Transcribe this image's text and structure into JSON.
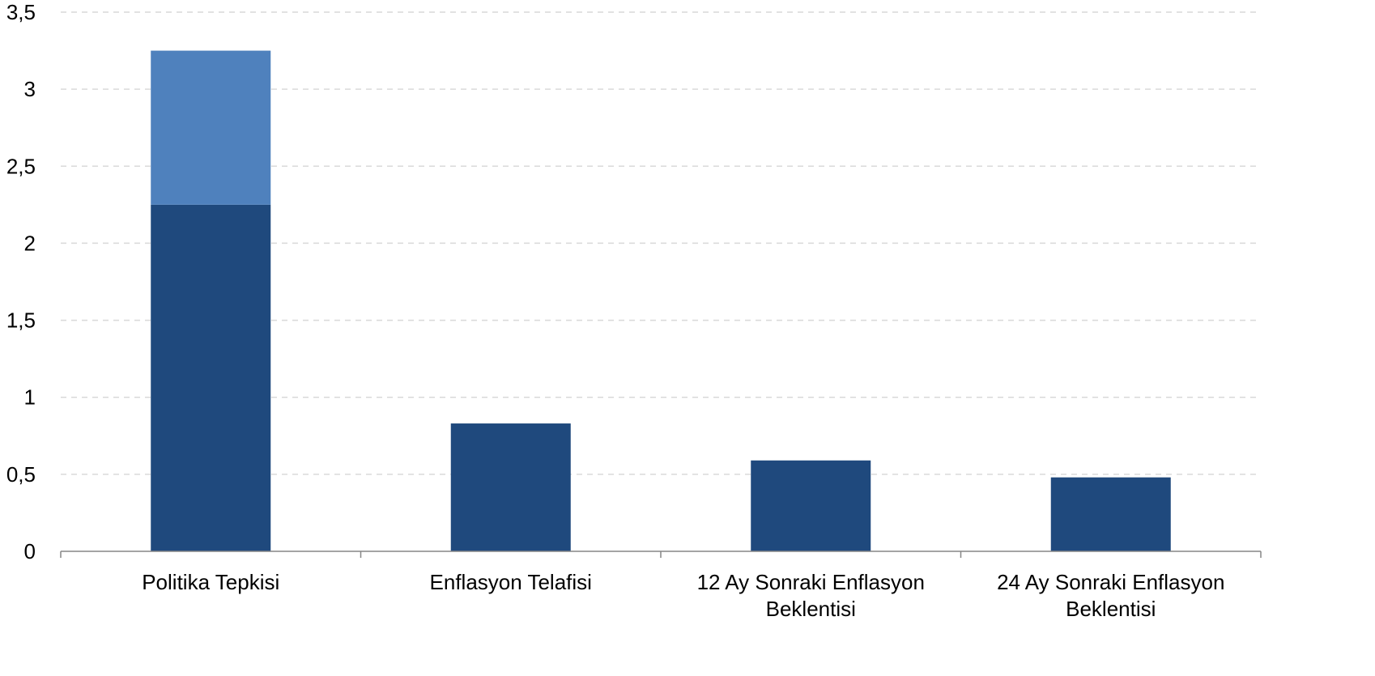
{
  "chart_data": {
    "type": "bar",
    "stacked": true,
    "title": "",
    "xlabel": "",
    "ylabel": "",
    "ylim": [
      0,
      3.5
    ],
    "y_ticks": [
      "0",
      "0,5",
      "1",
      "1,5",
      "2",
      "2,5",
      "3",
      "3,5"
    ],
    "y_tick_values": [
      0,
      0.5,
      1,
      1.5,
      2,
      2.5,
      3,
      3.5
    ],
    "grid": true,
    "legend": "none",
    "categories": [
      [
        "Politika Tepkisi"
      ],
      [
        "Enflasyon Telafisi"
      ],
      [
        "12 Ay Sonraki Enflasyon",
        "Beklentisi"
      ],
      [
        "24 Ay Sonraki Enflasyon",
        "Beklentisi"
      ]
    ],
    "series": [
      {
        "values": [
          2.25,
          0.83,
          0.59,
          0.48
        ],
        "color": "#1f497d"
      },
      {
        "values": [
          1.0,
          0,
          0,
          0
        ],
        "color": "#4f81bd"
      }
    ],
    "colors": {
      "gridline": "#d9d9d9",
      "axis": "#868686"
    }
  }
}
